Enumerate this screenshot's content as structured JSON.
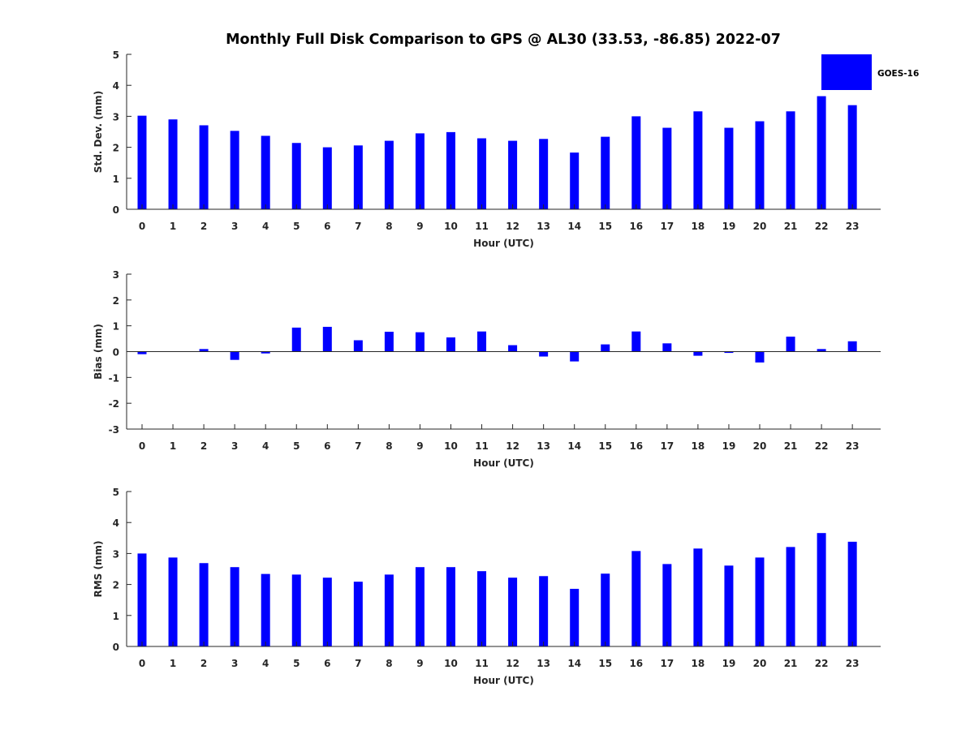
{
  "title": "Monthly Full Disk Comparison to GPS @ AL30 (33.53, -86.85) 2022-07",
  "colors": {
    "bar": "#0000ff",
    "axis": "#262626",
    "title": "#000000"
  },
  "legend": {
    "label": "GOES-16",
    "placement": "top-right"
  },
  "chart_data": [
    {
      "type": "bar",
      "title": "Monthly Full Disk Comparison to GPS @ AL30 (33.53, -86.85) 2022-07",
      "xlabel": "Hour (UTC)",
      "ylabel": "Std. Dev. (mm)",
      "ylim": [
        0,
        5
      ],
      "yticks": [
        0,
        1,
        2,
        3,
        4,
        5
      ],
      "grid": false,
      "categories": [
        0,
        1,
        2,
        3,
        4,
        5,
        6,
        7,
        8,
        9,
        10,
        11,
        12,
        13,
        14,
        15,
        16,
        17,
        18,
        19,
        20,
        21,
        22,
        23
      ],
      "series": [
        {
          "name": "GOES-16",
          "values": [
            3.02,
            2.9,
            2.71,
            2.53,
            2.37,
            2.14,
            2.0,
            2.06,
            2.21,
            2.45,
            2.49,
            2.29,
            2.21,
            2.27,
            1.83,
            2.34,
            3.0,
            2.63,
            3.16,
            2.63,
            2.84,
            3.16,
            3.65,
            3.36
          ]
        }
      ]
    },
    {
      "type": "bar",
      "xlabel": "Hour (UTC)",
      "ylabel": "Bias (mm)",
      "ylim": [
        -3,
        3
      ],
      "yticks": [
        -3,
        -2,
        -1,
        0,
        1,
        2,
        3
      ],
      "grid": false,
      "categories": [
        0,
        1,
        2,
        3,
        4,
        5,
        6,
        7,
        8,
        9,
        10,
        11,
        12,
        13,
        14,
        15,
        16,
        17,
        18,
        19,
        20,
        21,
        22,
        23
      ],
      "series": [
        {
          "name": "GOES-16",
          "values": [
            -0.1,
            0.0,
            0.1,
            -0.32,
            -0.07,
            0.93,
            0.96,
            0.44,
            0.77,
            0.75,
            0.55,
            0.78,
            0.25,
            -0.19,
            -0.38,
            0.28,
            0.78,
            0.32,
            -0.16,
            -0.05,
            -0.42,
            0.58,
            0.1,
            0.4
          ]
        }
      ]
    },
    {
      "type": "bar",
      "xlabel": "Hour (UTC)",
      "ylabel": "RMS (mm)",
      "ylim": [
        0,
        5
      ],
      "yticks": [
        0,
        1,
        2,
        3,
        4,
        5
      ],
      "grid": false,
      "categories": [
        0,
        1,
        2,
        3,
        4,
        5,
        6,
        7,
        8,
        9,
        10,
        11,
        12,
        13,
        14,
        15,
        16,
        17,
        18,
        19,
        20,
        21,
        22,
        23
      ],
      "series": [
        {
          "name": "GOES-16",
          "values": [
            3.0,
            2.87,
            2.69,
            2.56,
            2.34,
            2.32,
            2.22,
            2.09,
            2.32,
            2.56,
            2.56,
            2.43,
            2.22,
            2.27,
            1.86,
            2.35,
            3.08,
            2.66,
            3.16,
            2.61,
            2.87,
            3.21,
            3.66,
            3.38
          ]
        }
      ]
    }
  ]
}
